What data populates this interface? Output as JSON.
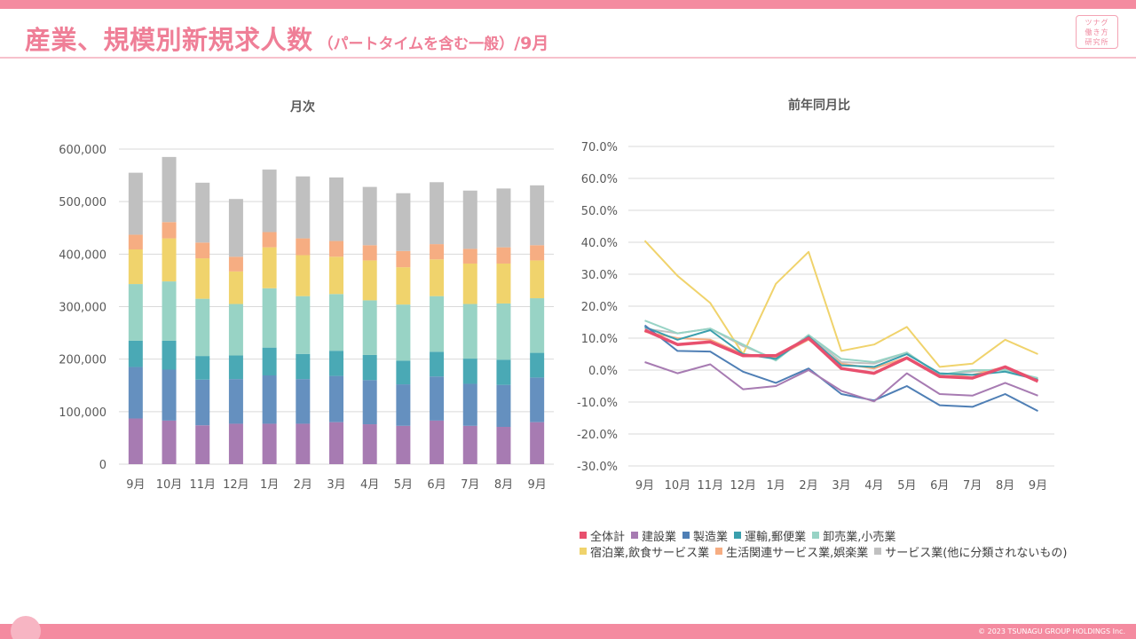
{
  "header": {
    "title_main": "産業、規模別新規求人数",
    "title_sub": "（パートタイムを含む一般）",
    "title_month": "/9月"
  },
  "logo": {
    "line1": "ツナグ",
    "line2": "働き方",
    "line3": "研究所"
  },
  "footer": {
    "copyright": "© 2023 TSUNAGU GROUP HOLDINGS Inc."
  },
  "colors": {
    "accent": "#ef7f97",
    "bar_top": "#f48ba0",
    "grid": "#d9d9d9",
    "axis_text": "#595959"
  },
  "chart_data": [
    {
      "type": "bar",
      "stacked": true,
      "title": "月次",
      "categories": [
        "9月",
        "10月",
        "11月",
        "12月",
        "1月",
        "2月",
        "3月",
        "4月",
        "5月",
        "6月",
        "7月",
        "8月",
        "9月"
      ],
      "ylim": [
        0,
        600000
      ],
      "yticks": [
        0,
        100000,
        200000,
        300000,
        400000,
        500000,
        600000
      ],
      "ytick_labels": [
        "0",
        "100,000",
        "200,000",
        "300,000",
        "400,000",
        "500,000",
        "600,000"
      ],
      "grid": true,
      "series": [
        {
          "name": "建設業",
          "color": "#a77bb2",
          "values": [
            87000,
            83000,
            74000,
            77000,
            77000,
            77000,
            80000,
            76000,
            73000,
            83000,
            73000,
            71000,
            80000
          ]
        },
        {
          "name": "製造業",
          "color": "#6590bf",
          "values": [
            98000,
            97000,
            87000,
            85000,
            92000,
            85000,
            88000,
            84000,
            79000,
            84000,
            80000,
            80000,
            85000
          ]
        },
        {
          "name": "運輸,郵便業",
          "color": "#4aa9b5",
          "values": [
            50000,
            55000,
            45000,
            45000,
            53000,
            48000,
            48000,
            48000,
            45000,
            47000,
            48000,
            48000,
            47000
          ]
        },
        {
          "name": "卸売業,小売業",
          "color": "#98d3c5",
          "values": [
            108000,
            113000,
            109000,
            98000,
            113000,
            110000,
            108000,
            104000,
            107000,
            106000,
            104000,
            107000,
            104000
          ]
        },
        {
          "name": "宿泊業,飲食サービス業",
          "color": "#f0d36c",
          "values": [
            66000,
            82000,
            77000,
            62000,
            78000,
            78000,
            71000,
            76000,
            71000,
            70000,
            77000,
            76000,
            72000
          ]
        },
        {
          "name": "生活関連サービス業,娯楽業",
          "color": "#f6ad82",
          "values": [
            28000,
            31000,
            30000,
            28000,
            29000,
            32000,
            30000,
            29000,
            31000,
            29000,
            28000,
            31000,
            29000
          ]
        },
        {
          "name": "サービス業(他に分類されないもの)",
          "color": "#c0c0c0",
          "values": [
            118000,
            124000,
            114000,
            110000,
            119000,
            118000,
            121000,
            111000,
            110000,
            118000,
            111000,
            112000,
            114000
          ]
        }
      ]
    },
    {
      "type": "line",
      "title": "前年同月比",
      "categories": [
        "9月",
        "10月",
        "11月",
        "12月",
        "1月",
        "2月",
        "3月",
        "4月",
        "5月",
        "6月",
        "7月",
        "8月",
        "9月"
      ],
      "ylim": [
        -30.0,
        70.0
      ],
      "yticks": [
        -30,
        -20,
        -10,
        0,
        10,
        20,
        30,
        40,
        50,
        60,
        70
      ],
      "ytick_labels": [
        "-30.0%",
        "-20.0%",
        "-10.0%",
        "0.0%",
        "10.0%",
        "20.0%",
        "30.0%",
        "40.0%",
        "50.0%",
        "60.0%",
        "70.0%"
      ],
      "grid": true,
      "legend_position": "bottom",
      "series": [
        {
          "name": "全体計",
          "color": "#e8506e",
          "width": 3.5,
          "values": [
            12.5,
            8.0,
            8.8,
            4.5,
            4.5,
            10.0,
            0.5,
            -1.0,
            3.8,
            -2.0,
            -2.5,
            1.0,
            -3.5
          ]
        },
        {
          "name": "建設業",
          "color": "#a77bb2",
          "width": 2,
          "values": [
            2.5,
            -1.0,
            1.8,
            -6.0,
            -5.0,
            0.0,
            -6.5,
            -9.8,
            -1.0,
            -7.5,
            -8.0,
            -4.0,
            -8.0
          ]
        },
        {
          "name": "製造業",
          "color": "#4f7fb5",
          "width": 2,
          "values": [
            14.0,
            6.0,
            5.8,
            -0.5,
            -4.0,
            0.5,
            -7.5,
            -9.5,
            -5.0,
            -11.0,
            -11.5,
            -7.5,
            -12.8
          ]
        },
        {
          "name": "運輸,郵便業",
          "color": "#3a9fad",
          "width": 2,
          "values": [
            13.5,
            9.5,
            12.5,
            5.0,
            3.5,
            10.5,
            1.5,
            1.0,
            5.0,
            -1.0,
            -1.5,
            -0.5,
            -3.0
          ]
        },
        {
          "name": "卸売業,小売業",
          "color": "#98d3c5",
          "width": 2,
          "values": [
            15.5,
            11.5,
            13.0,
            8.0,
            3.0,
            11.0,
            3.5,
            2.5,
            5.5,
            -1.5,
            0.0,
            0.0,
            -2.5
          ]
        },
        {
          "name": "宿泊業,飲食サービス業",
          "color": "#f0d36c",
          "width": 2,
          "values": [
            40.5,
            29.5,
            21.0,
            5.0,
            27.0,
            37.0,
            6.0,
            8.0,
            13.5,
            1.0,
            2.0,
            9.5,
            5.0
          ]
        },
        {
          "name": "生活関連サービス業,娯楽業",
          "color": "#f6ad82",
          "width": 2,
          "values": [
            12.0,
            10.0,
            9.5,
            5.0,
            4.0,
            9.5,
            2.0,
            0.5,
            4.0,
            -2.0,
            -1.5,
            1.0,
            -3.0
          ]
        },
        {
          "name": "サービス業(他に分類されないもの)",
          "color": "#c0c0c0",
          "width": 2,
          "values": [
            13.0,
            11.5,
            13.0,
            7.5,
            3.5,
            11.0,
            2.5,
            2.0,
            5.5,
            -1.5,
            -0.5,
            0.5,
            -3.0
          ]
        }
      ]
    }
  ]
}
